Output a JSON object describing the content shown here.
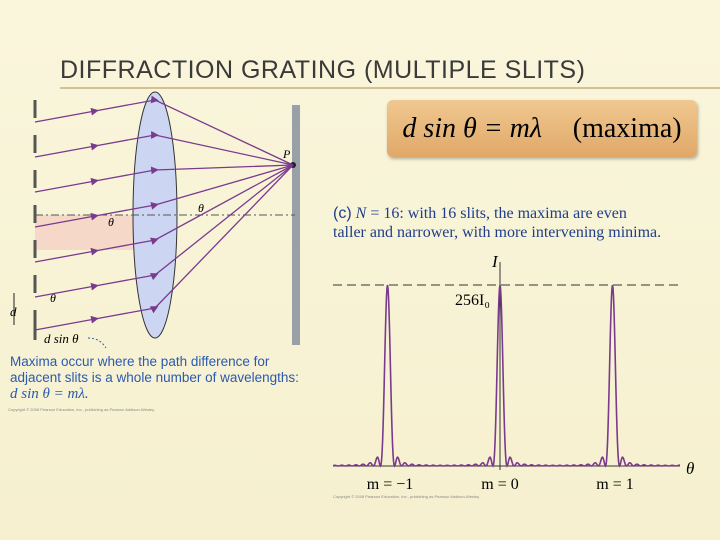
{
  "title": "DIFFRACTION GRATING (MULTIPLE SLITS)",
  "formula": {
    "equation": "d sin θ = mλ",
    "note": "(maxima)"
  },
  "left_figure": {
    "labels": [
      "P",
      "θ",
      "θ",
      "θ",
      "d",
      "d sin θ"
    ],
    "caption": "Maxima occur where the path difference for adjacent slits is a whole number of wavelengths:",
    "caption_equation": "d sin θ = mλ.",
    "credit": "Copyright © 2008 Pearson Education, Inc., publishing as Pearson Addison-Wesley."
  },
  "right_figure": {
    "caption_tag": "(c)",
    "caption_variable": "N",
    "caption_text": "= 16: with 16 slits, the maxima are even taller and narrower, with more intervening minima.",
    "axis_y": "I",
    "peak_label": "256I₀",
    "axis_x": "θ",
    "orders": [
      "m = −1",
      "m = 0",
      "m = 1"
    ],
    "credit": "Copyright © 2008 Pearson Education, Inc., publishing as Pearson Addison-Wesley."
  }
}
